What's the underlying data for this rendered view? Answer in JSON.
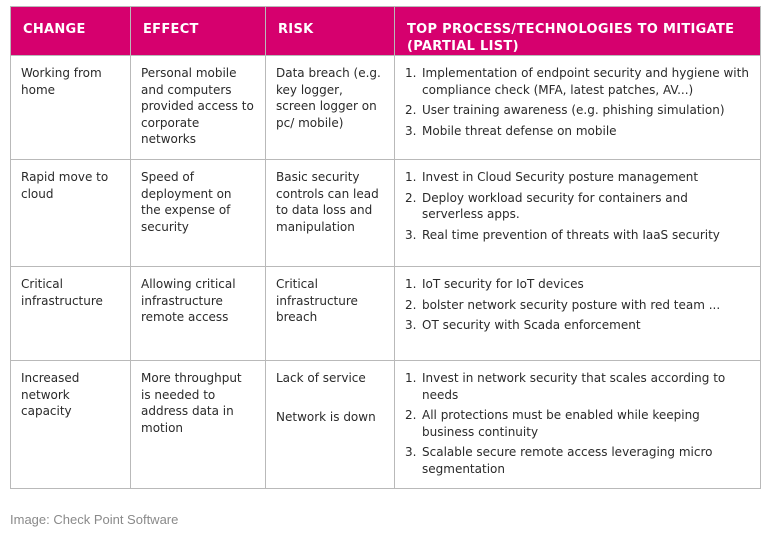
{
  "headers": {
    "change": "CHANGE",
    "effect": "EFFECT",
    "risk": "RISK",
    "mitigate": "TOP PROCESS/TECHNOLOGIES TO MITIGATE (PARTIAL LIST)"
  },
  "rows": [
    {
      "change": "Working from home",
      "effect": "Personal mobile and computers provided access to corporate networks",
      "risk": [
        "Data breach (e.g. key logger, screen logger on pc/ mobile)"
      ],
      "mitigations": [
        {
          "num": "1.",
          "text": "Implementation of endpoint security and hygiene with compliance check (MFA, latest patches, AV...)"
        },
        {
          "num": "2.",
          "text": "User training awareness (e.g. phishing simulation)"
        },
        {
          "num": "3.",
          "text": "Mobile threat defense on mobile"
        }
      ]
    },
    {
      "change": "Rapid move to cloud",
      "effect": "Speed of deployment on the expense of security",
      "risk": [
        "Basic security controls can lead to data loss and manipulation"
      ],
      "mitigations": [
        {
          "num": "1.",
          "text": "Invest in Cloud Security posture management"
        },
        {
          "num": "2.",
          "text": "Deploy workload security for containers and serverless apps."
        },
        {
          "num": "3.",
          "text": "Real time prevention of threats with IaaS security"
        }
      ]
    },
    {
      "change": "Critical infrastructure",
      "effect": "Allowing critical infrastructure remote access",
      "risk": [
        "Critical infrastructure breach"
      ],
      "mitigations": [
        {
          "num": "1.",
          "text": "IoT security for IoT devices"
        },
        {
          "num": "2.",
          "text": "bolster network security posture with red team ..."
        },
        {
          "num": "3.",
          "text": "OT security with Scada enforcement"
        }
      ]
    },
    {
      "change": "Increased network capacity",
      "effect": "More throughput is needed to address data in motion",
      "risk": [
        "Lack of service",
        "Network is down"
      ],
      "mitigations": [
        {
          "num": "1.",
          "text": "Invest in network security that scales according to needs"
        },
        {
          "num": "2.",
          "text": "All protections must be enabled while keeping business continuity"
        },
        {
          "num": "3.",
          "text": "Scalable secure remote access leveraging micro segmentation"
        }
      ]
    }
  ],
  "caption": "Image: Check Point Software",
  "colors": {
    "header_bg": "#d6006e",
    "header_text": "#ffffff",
    "border": "#b9b9b9"
  }
}
